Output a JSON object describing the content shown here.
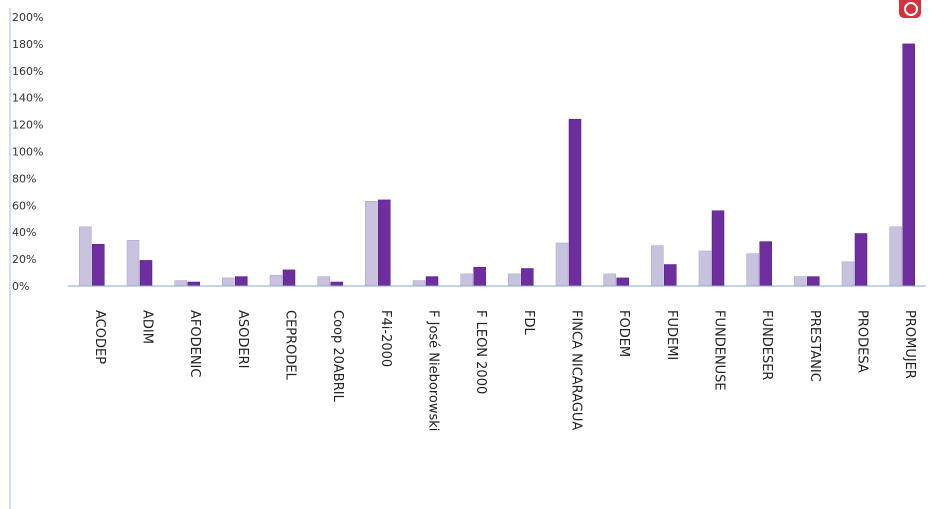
{
  "colors": {
    "series_light": "#c9c2df",
    "series_dark": "#6e2ea0",
    "axis_line": "#8aa9c9",
    "frame_line": "#9ec0e0",
    "badge": "#d6323b"
  },
  "badge_icon": "record-icon",
  "chart_data": {
    "type": "bar",
    "categories": [
      "ACODEP",
      "ADIM",
      "AFODENIC",
      "ASODERI",
      "CEPRODEL",
      "Coop 20ABRIL",
      "F4i-2000",
      "F José Nieborowski",
      "F LEON 2000",
      "FDL",
      "FINCA NICARAGUA",
      "FODEM",
      "FUDEMI",
      "FUNDENUSE",
      "FUNDESER",
      "PRESTANIC",
      "PRODESA",
      "PROMUJER"
    ],
    "series": [
      {
        "values": [
          44,
          34,
          4,
          6,
          8,
          7,
          63,
          4,
          9,
          9,
          32,
          9,
          30,
          26,
          24,
          7,
          18,
          44
        ]
      },
      {
        "values": [
          31,
          19,
          3,
          7,
          12,
          3,
          64,
          7,
          14,
          13,
          124,
          6,
          16,
          56,
          33,
          7,
          39,
          180
        ]
      }
    ],
    "yticks": [
      "0%",
      "20%",
      "40%",
      "60%",
      "80%",
      "100%",
      "120%",
      "140%",
      "160%",
      "180%",
      "200%"
    ],
    "ylim": [
      0,
      200
    ],
    "grid": false,
    "legend": "none"
  }
}
